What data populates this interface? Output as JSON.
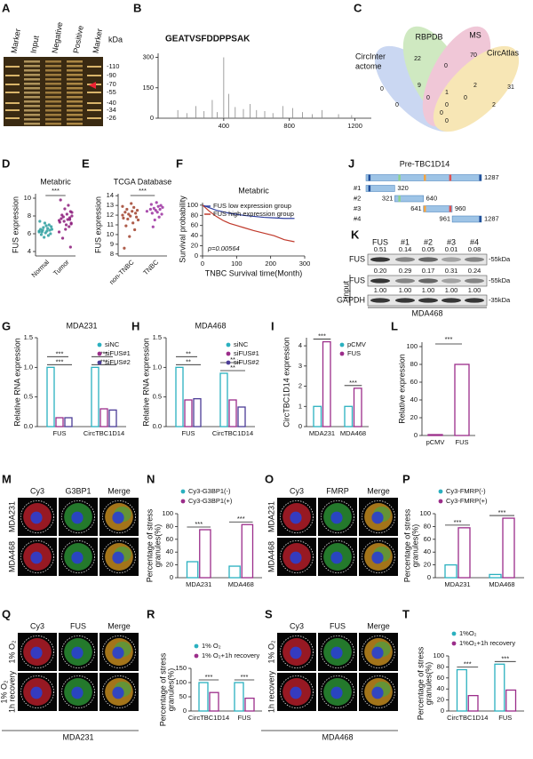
{
  "chart_data": [
    {
      "panel": "B",
      "type": "stem",
      "title": "GEATVSFDDPPSAK",
      "color": "#8a8a8a",
      "x": [
        120,
        175,
        230,
        280,
        330,
        360,
        400,
        430,
        470,
        520,
        560,
        600,
        650,
        700,
        760,
        820,
        880,
        940,
        1000,
        1100,
        1180
      ],
      "values": [
        40,
        25,
        60,
        35,
        90,
        30,
        300,
        120,
        55,
        45,
        70,
        40,
        35,
        25,
        60,
        50,
        30,
        20,
        40,
        20,
        15
      ],
      "xlim": [
        0,
        1300
      ],
      "xticks": [
        400,
        800,
        1200
      ],
      "ylim": [
        0,
        320
      ],
      "yticks": [
        0,
        150,
        300
      ]
    },
    {
      "panel": "D",
      "type": "strip",
      "title": "Metabric",
      "ylabel": "FUS expression",
      "categories": [
        "Normal",
        "Tumor"
      ],
      "colors": [
        "#2a9d9d",
        "#8b1a7a"
      ],
      "values": [
        [
          6.2,
          6.5,
          6.8,
          6.0,
          6.4,
          7.0,
          5.8,
          6.6,
          6.3,
          6.9,
          6.1,
          7.2,
          5.6,
          6.7,
          6.4,
          6.2,
          5.9,
          6.5,
          7.4,
          6.3
        ],
        [
          7.5,
          8.0,
          7.2,
          8.5,
          7.8,
          6.8,
          9.2,
          7.6,
          8.2,
          7.0,
          6.5,
          8.8,
          7.4,
          7.9,
          5.5,
          8.1,
          7.7,
          9.8,
          7.3,
          6.2,
          8.4,
          7.1,
          4.5,
          7.6
        ]
      ],
      "ylim": [
        3.5,
        10.5
      ],
      "yticks": [
        4,
        6,
        8,
        10
      ],
      "significance": "***"
    },
    {
      "panel": "E",
      "type": "strip",
      "title": "TCGA Database",
      "ylabel": "FUS expression",
      "categories": [
        "non-TNBC",
        "TNBC"
      ],
      "colors": [
        "#a0402a",
        "#9b30a0"
      ],
      "values": [
        [
          12.0,
          11.5,
          12.5,
          11.8,
          12.2,
          10.5,
          12.8,
          11.2,
          12.4,
          13.2,
          11.9,
          9.8,
          12.1,
          11.6,
          12.6,
          10.9,
          12.3,
          8.6,
          11.7,
          12.9
        ],
        [
          12.4,
          12.8,
          12.1,
          13.0,
          12.6,
          11.8,
          12.9,
          12.3,
          13.3,
          12.5,
          11.5,
          12.7,
          10.8,
          12.2,
          13.1,
          12.6
        ]
      ],
      "ylim": [
        7.8,
        14.2
      ],
      "yticks": [
        8,
        9,
        10,
        11,
        12,
        13,
        14
      ],
      "significance": "***"
    },
    {
      "panel": "F",
      "type": "line",
      "title": "Metabric",
      "ylabel": "Survival probability",
      "xlabel": "TNBC Survival time(Month)",
      "annotation": "p=0.00564",
      "legend": "upper left",
      "series": [
        {
          "name": "FUS low expression group",
          "color": "#3040a0",
          "x": [
            0,
            20,
            40,
            60,
            80,
            100,
            120,
            150,
            180,
            210,
            240,
            270
          ],
          "values": [
            100,
            95,
            90,
            87,
            84,
            82,
            80,
            78,
            76,
            75,
            74,
            74
          ]
        },
        {
          "name": "FUS high expression group",
          "color": "#c0392b",
          "x": [
            0,
            20,
            40,
            60,
            80,
            100,
            120,
            150,
            180,
            210,
            240,
            270
          ],
          "values": [
            100,
            88,
            78,
            70,
            64,
            60,
            56,
            50,
            45,
            40,
            32,
            28
          ]
        }
      ],
      "xlim": [
        0,
        300
      ],
      "xticks": [
        0,
        100,
        200,
        300
      ],
      "ylim": [
        0,
        105
      ],
      "yticks": [
        0,
        20,
        40,
        60,
        80,
        100
      ]
    },
    {
      "panel": "G",
      "type": "bar",
      "title": "MDA231",
      "ylabel": "Relative RNA expression",
      "legend": "upper right",
      "categories": [
        "FUS",
        "CircTBC1D14"
      ],
      "series": [
        {
          "name": "siNC",
          "color": "#2ab0bf",
          "values": [
            1.0,
            1.0
          ]
        },
        {
          "name": "siFUS#1",
          "color": "#9b2d8a",
          "values": [
            0.15,
            0.3
          ]
        },
        {
          "name": "siFUS#2",
          "color": "#4b3c96",
          "values": [
            0.15,
            0.28
          ]
        }
      ],
      "ylim": [
        0,
        1.5
      ],
      "yticks": [
        {
          "value": 0,
          "label": "0.0"
        },
        0.5,
        {
          "value": 1,
          "label": "1.0"
        },
        1.5
      ],
      "significance": [
        [
          "***",
          "***"
        ],
        [
          "***",
          "***"
        ]
      ]
    },
    {
      "panel": "H",
      "type": "bar",
      "title": "MDA468",
      "ylabel": "Relative RNA expression",
      "legend": "upper right",
      "categories": [
        "FUS",
        "CircTBC1D14"
      ],
      "series": [
        {
          "name": "siNC",
          "color": "#2ab0bf",
          "values": [
            1.0,
            0.9
          ]
        },
        {
          "name": "siFUS#1",
          "color": "#9b2d8a",
          "values": [
            0.45,
            0.45
          ]
        },
        {
          "name": "siFUS#2",
          "color": "#4b3c96",
          "values": [
            0.47,
            0.33
          ]
        }
      ],
      "ylim": [
        0,
        1.5
      ],
      "yticks": [
        {
          "value": 0,
          "label": "0.0"
        },
        0.5,
        {
          "value": 1,
          "label": "1.0"
        },
        1.5
      ],
      "significance": [
        [
          "**",
          "**"
        ],
        [
          "**",
          "**"
        ]
      ]
    },
    {
      "panel": "I",
      "type": "bar",
      "ylabel": "CircTBC1D14 expression",
      "legend": "upper right",
      "categories": [
        "MDA231",
        "MDA468"
      ],
      "series": [
        {
          "name": "pCMV",
          "color": "#2ab0bf",
          "values": [
            1.0,
            1.0
          ]
        },
        {
          "name": "FUS",
          "color": "#9b2d8a",
          "values": [
            4.2,
            1.9
          ]
        }
      ],
      "ylim": [
        0,
        4.4
      ],
      "yticks": [
        0,
        1,
        2,
        3,
        4
      ],
      "significance": [
        "***",
        "***"
      ]
    },
    {
      "panel": "L",
      "type": "bar",
      "ylabel": "Relative expression",
      "categories": [
        "pCMV",
        "FUS"
      ],
      "values": [
        1,
        80
      ],
      "color": "#9b2d8a",
      "ylim": [
        0,
        105
      ],
      "yticks": [
        0,
        20,
        40,
        60,
        80,
        100
      ],
      "significance": "***"
    },
    {
      "panel": "N",
      "type": "bar",
      "ylabel": [
        "Percentage of stress",
        "granules(%)"
      ],
      "legend": "top",
      "categories": [
        "MDA231",
        "MDA468"
      ],
      "series": [
        {
          "name": "Cy3-G3BP1(-)",
          "color": "#2ab0bf",
          "values": [
            25,
            18
          ]
        },
        {
          "name": "Cy3-G3BP1(+)",
          "color": "#9b2d8a",
          "values": [
            75,
            83
          ]
        }
      ],
      "ylim": [
        0,
        100
      ],
      "yticks": [
        0,
        20,
        40,
        60,
        80,
        100
      ],
      "significance": [
        "***",
        "***"
      ]
    },
    {
      "panel": "P",
      "type": "bar",
      "ylabel": [
        "Percentage of stress",
        "granules(%)"
      ],
      "legend": "top",
      "categories": [
        "MDA231",
        "MDA468"
      ],
      "series": [
        {
          "name": "Cy3-FMRP(-)",
          "color": "#2ab0bf",
          "values": [
            20,
            5
          ]
        },
        {
          "name": "Cy3-FMRP(+)",
          "color": "#9b2d8a",
          "values": [
            78,
            93
          ]
        }
      ],
      "ylim": [
        0,
        100
      ],
      "yticks": [
        0,
        20,
        40,
        60,
        80,
        100
      ],
      "significance": [
        "***",
        "***"
      ]
    },
    {
      "panel": "R",
      "type": "bar",
      "ylabel": [
        "Percentage of stress",
        "granules(%)"
      ],
      "legend": "top",
      "categories": [
        "CircTBC1D14",
        "FUS"
      ],
      "series": [
        {
          "name": "1% O₂",
          "color": "#2ab0bf",
          "values": [
            100,
            100
          ]
        },
        {
          "name": "1% O₂+1h recovery",
          "color": "#9b2d8a",
          "values": [
            65,
            45
          ]
        }
      ],
      "ylim": [
        0,
        150
      ],
      "yticks": [
        0,
        50,
        100,
        150
      ],
      "significance": [
        "***",
        "***"
      ]
    },
    {
      "panel": "T",
      "type": "bar",
      "ylabel": [
        "Percentage of stress",
        "granules(%)"
      ],
      "legend": "top",
      "categories": [
        "CircTBC1D14",
        "FUS"
      ],
      "series": [
        {
          "name": "1%O₂",
          "color": "#2ab0bf",
          "values": [
            75,
            85
          ]
        },
        {
          "name": "1%O₂+1h recovery",
          "color": "#9b2d8a",
          "values": [
            28,
            38
          ]
        }
      ],
      "ylim": [
        0,
        100
      ],
      "yticks": [
        0,
        20,
        40,
        60,
        80,
        100
      ],
      "significance": [
        "***",
        "***"
      ]
    }
  ],
  "gel": {
    "panel": "A",
    "lanes": [
      "Marker",
      "Input",
      "Negative",
      "Positive",
      "Marker"
    ],
    "unit": "kDa",
    "markers": [
      "-110",
      "-90",
      "-70",
      "-55",
      "-40",
      "-34",
      "-26"
    ]
  },
  "venn": {
    "panel": "C",
    "set_labels": [
      [
        "CircInter",
        "actome"
      ],
      [
        "RBPDB"
      ],
      [
        "MS"
      ],
      [
        "CircAtlas"
      ]
    ],
    "counts": [
      0,
      22,
      70,
      31,
      0,
      0,
      0,
      2,
      9,
      2,
      0,
      1,
      0,
      0,
      0
    ]
  },
  "construct": {
    "panel": "J",
    "title": "Pre-TBC1D14",
    "full_end": 1287,
    "fragments": [
      {
        "name": "#1",
        "end": 320
      },
      {
        "name": "#2",
        "start": 321,
        "end": 640
      },
      {
        "name": "#3",
        "start": 641,
        "end": 960
      },
      {
        "name": "#4",
        "start": 961,
        "end": 1287
      }
    ]
  },
  "western": {
    "panel": "K",
    "lanes": [
      "FUS",
      "#1",
      "#2",
      "#3",
      "#4"
    ],
    "rows": [
      {
        "label": "FUS",
        "quant": [
          "0.51",
          "0.14",
          "0.05",
          "0.01",
          "0.08"
        ],
        "size": "-55kDa"
      },
      {
        "label": "FUS",
        "quant": [
          "0.20",
          "0.29",
          "0.17",
          "0.31",
          "0.24"
        ],
        "size": "-55kDa"
      },
      {
        "label": "GAPDH",
        "quant": [
          "1.00",
          "1.00",
          "1.00",
          "1.00",
          "1.00"
        ],
        "size": "-35kDa"
      }
    ],
    "input_label": "Input",
    "cell_line": "MDA468"
  },
  "micrographs": [
    {
      "panel": "M",
      "col_labels": [
        "Cy3",
        "G3BP1",
        "Merge"
      ],
      "row_labels": [
        [
          "MDA231"
        ],
        [
          "MDA468"
        ]
      ]
    },
    {
      "panel": "O",
      "col_labels": [
        "Cy3",
        "FMRP",
        "Merge"
      ],
      "row_labels": [
        [
          "MDA231"
        ],
        [
          "MDA468"
        ]
      ]
    },
    {
      "panel": "Q",
      "col_labels": [
        "Cy3",
        "FUS",
        "Merge"
      ],
      "row_labels": [
        [
          "1% O₂"
        ],
        [
          "1% O₂",
          "1h recovery"
        ]
      ],
      "cell_line": "MDA231"
    },
    {
      "panel": "S",
      "col_labels": [
        "Cy3",
        "FUS",
        "Merge"
      ],
      "row_labels": [
        [
          "1% O₂"
        ],
        [
          "1h recovery"
        ]
      ],
      "cell_line": "MDA468"
    }
  ]
}
